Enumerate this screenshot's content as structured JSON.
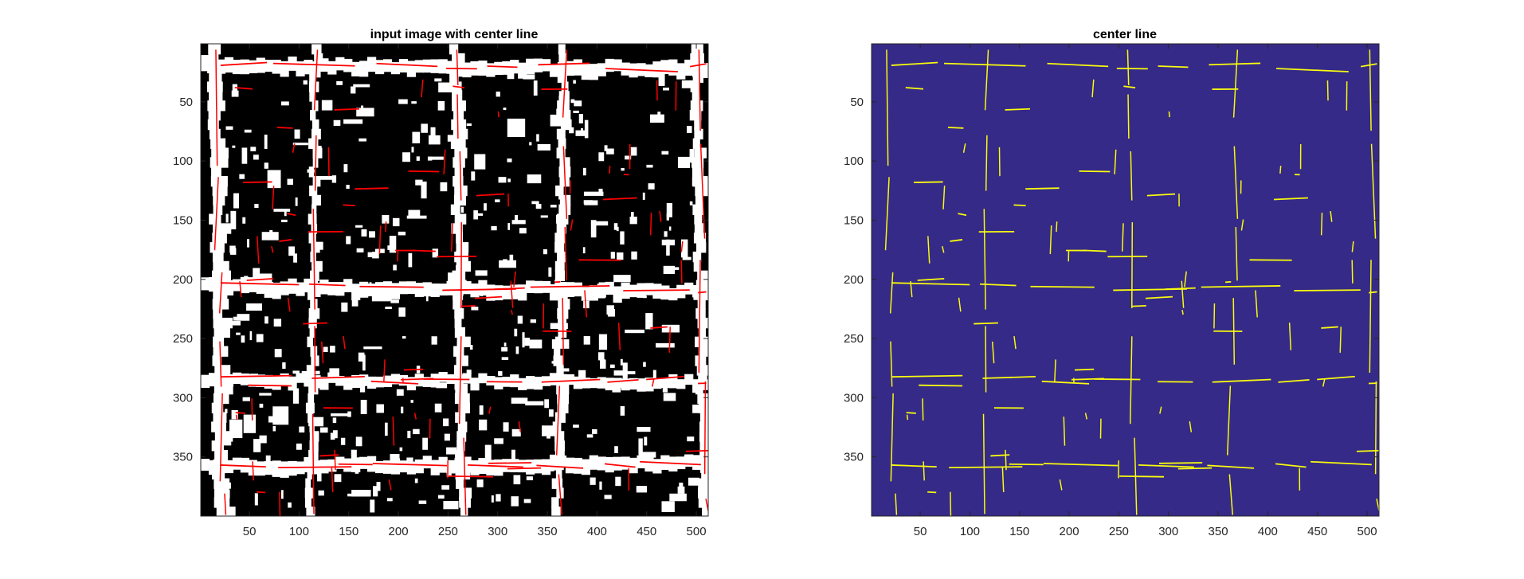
{
  "chart_data": [
    {
      "type": "heatmap",
      "title": "input image with center line",
      "colors": {
        "background": "#000000",
        "foreground": "#ffffff",
        "centerline": "#ff0000"
      },
      "xlim": [
        1,
        512
      ],
      "ylim": [
        1,
        400
      ],
      "y_reversed": true,
      "xticks": [
        50,
        100,
        150,
        200,
        250,
        300,
        350,
        400,
        450,
        500
      ],
      "yticks": [
        50,
        100,
        150,
        200,
        250,
        300,
        350
      ],
      "grid": false,
      "horizontal_roads_y": [
        12,
        19,
        203,
        282,
        357
      ],
      "vertical_roads_x": [
        20,
        115,
        258,
        368,
        500
      ]
    },
    {
      "type": "heatmap",
      "title": "center line",
      "colors": {
        "background": "#352a87",
        "foreground": "#f9fb0e"
      },
      "xlim": [
        1,
        512
      ],
      "ylim": [
        1,
        400
      ],
      "y_reversed": true,
      "xticks": [
        50,
        100,
        150,
        200,
        250,
        300,
        350,
        400,
        450,
        500
      ],
      "yticks": [
        50,
        100,
        150,
        200,
        250,
        300,
        350
      ],
      "grid": false
    }
  ]
}
